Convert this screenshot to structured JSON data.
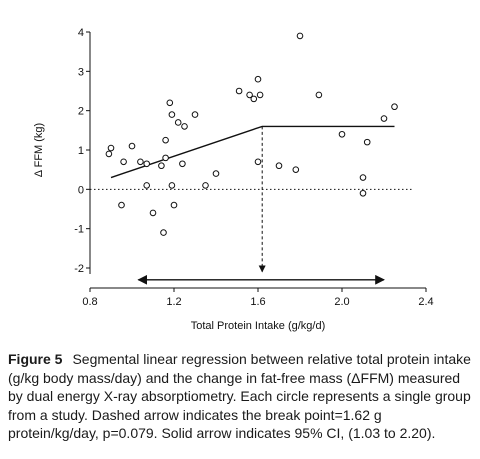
{
  "chart_data": {
    "type": "scatter",
    "xlabel": "Total Protein Intake (g/kg/d)",
    "ylabel": "Δ FFM (kg)",
    "xlim": [
      0.8,
      2.4
    ],
    "ylim": [
      -2,
      4
    ],
    "xticks": [
      "0.8",
      "1.2",
      "1.6",
      "2.0",
      "2.4"
    ],
    "yticks": [
      "-2",
      "-1",
      "0",
      "1",
      "2",
      "3",
      "4"
    ],
    "xtick_values": [
      0.8,
      1.2,
      1.6,
      2.0,
      2.4
    ],
    "ytick_values": [
      -2,
      -1,
      0,
      1,
      2,
      3,
      4
    ],
    "grid": false,
    "points": [
      {
        "x": 0.89,
        "y": 0.9
      },
      {
        "x": 0.9,
        "y": 1.05
      },
      {
        "x": 0.95,
        "y": -0.4
      },
      {
        "x": 0.96,
        "y": 0.7
      },
      {
        "x": 1.0,
        "y": 1.1
      },
      {
        "x": 1.04,
        "y": 0.7
      },
      {
        "x": 1.07,
        "y": 0.1
      },
      {
        "x": 1.07,
        "y": 0.65
      },
      {
        "x": 1.1,
        "y": -0.6
      },
      {
        "x": 1.14,
        "y": 0.6
      },
      {
        "x": 1.15,
        "y": -1.1
      },
      {
        "x": 1.16,
        "y": 1.25
      },
      {
        "x": 1.16,
        "y": 0.8
      },
      {
        "x": 1.18,
        "y": 2.2
      },
      {
        "x": 1.19,
        "y": 1.9
      },
      {
        "x": 1.19,
        "y": 0.1
      },
      {
        "x": 1.2,
        "y": -0.4
      },
      {
        "x": 1.22,
        "y": 1.7
      },
      {
        "x": 1.24,
        "y": 0.65
      },
      {
        "x": 1.25,
        "y": 1.6
      },
      {
        "x": 1.3,
        "y": 1.9
      },
      {
        "x": 1.35,
        "y": 0.1
      },
      {
        "x": 1.4,
        "y": 0.4
      },
      {
        "x": 1.51,
        "y": 2.5
      },
      {
        "x": 1.56,
        "y": 2.4
      },
      {
        "x": 1.58,
        "y": 2.3
      },
      {
        "x": 1.6,
        "y": 2.8
      },
      {
        "x": 1.6,
        "y": 0.7
      },
      {
        "x": 1.61,
        "y": 2.4
      },
      {
        "x": 1.7,
        "y": 0.6
      },
      {
        "x": 1.78,
        "y": 0.5
      },
      {
        "x": 1.8,
        "y": 3.9
      },
      {
        "x": 1.89,
        "y": 2.4
      },
      {
        "x": 2.0,
        "y": 1.4
      },
      {
        "x": 2.1,
        "y": 0.3
      },
      {
        "x": 2.1,
        "y": -0.1
      },
      {
        "x": 2.12,
        "y": 1.2
      },
      {
        "x": 2.2,
        "y": 1.8
      },
      {
        "x": 2.25,
        "y": 2.1
      }
    ],
    "regression_line": [
      {
        "x": 0.9,
        "y": 0.3
      },
      {
        "x": 1.62,
        "y": 1.6
      },
      {
        "x": 2.25,
        "y": 1.6
      }
    ],
    "zero_reference_y": 0,
    "break_point_x": 1.62,
    "ci_low": 1.03,
    "ci_high": 2.2,
    "ci_arrow_y": -2.3
  },
  "caption": {
    "label": "Figure 5",
    "text": "Segmental linear regression between relative total protein intake (g/kg body mass/day) and the change in fat-free mass (ΔFFM) measured by dual energy X-ray absorptiometry. Each circle represents a single group from a study. Dashed arrow indicates the break point=1.62 g protein/kg/day, p=0.079. Solid arrow indicates 95% CI, (1.03 to 2.20)."
  }
}
